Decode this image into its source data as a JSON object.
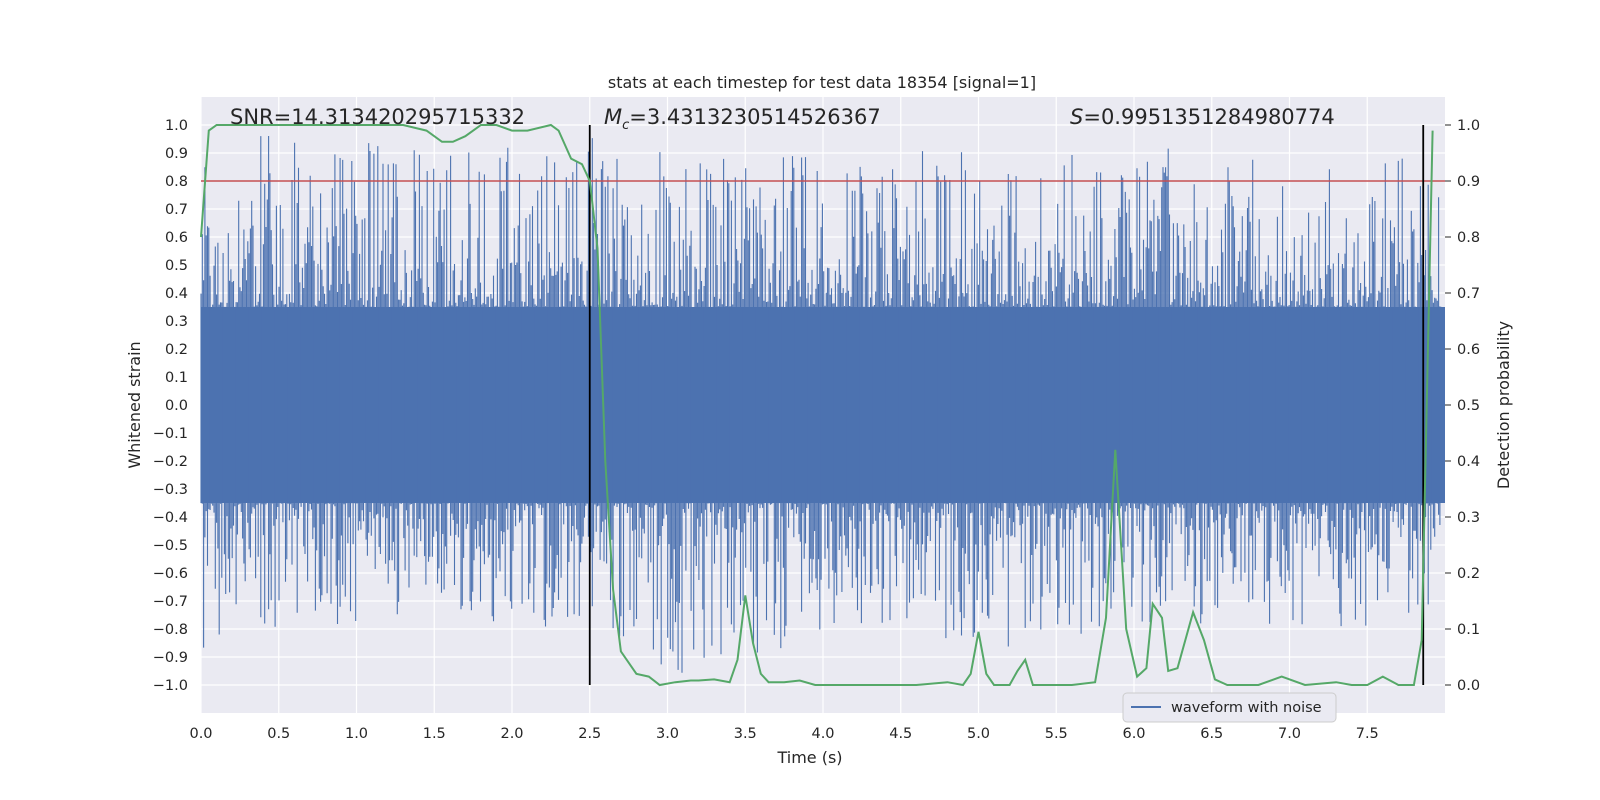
{
  "chart_data": {
    "type": "line",
    "title": "stats at each timestep for test data 18354 [signal=1]",
    "xlabel": "Time (s)",
    "ylabel": "Whitened strain",
    "y2label": "Detection probability",
    "xlim": [
      0.0,
      8.0
    ],
    "ylim": [
      -1.1,
      1.1
    ],
    "y2lim": [
      -0.05,
      1.05
    ],
    "xticks": [
      "0.0",
      "0.5",
      "1.0",
      "1.5",
      "2.0",
      "2.5",
      "3.0",
      "3.5",
      "4.0",
      "4.5",
      "5.0",
      "5.5",
      "6.0",
      "6.5",
      "7.0",
      "7.5"
    ],
    "yticks": [
      "1.0",
      "0.9",
      "0.8",
      "0.7",
      "0.6",
      "0.5",
      "0.4",
      "0.3",
      "0.2",
      "0.1",
      "0.0",
      "−0.1",
      "−0.2",
      "−0.3",
      "−0.4",
      "−0.5",
      "−0.6",
      "−0.7",
      "−0.8",
      "−0.9",
      "−1.0"
    ],
    "y2ticks": [
      "1.0",
      "0.9",
      "0.8",
      "0.7",
      "0.6",
      "0.5",
      "0.4",
      "0.3",
      "0.2",
      "0.1",
      "0.0"
    ],
    "grid": true,
    "legend": {
      "placement": "lower-right",
      "entries": [
        "waveform with noise"
      ]
    },
    "annotations": {
      "snr": "SNR=14.313420295715332",
      "mc_prefix": "M",
      "mc_sub": "c",
      "mc_value": "=3.4313230514526367",
      "s_prefix": "S",
      "s_value": "=0.9951351284980774"
    },
    "threshold_line": {
      "y": 0.8,
      "color": "#c44e52"
    },
    "event_lines_x": [
      2.5,
      7.86
    ],
    "series": [
      {
        "name": "waveform with noise",
        "color": "#4c72b0",
        "axis": "left",
        "note": "dense noisy waveform, core amplitude about ±0.35 with spikes to ±0.98",
        "envelope": {
          "x": [
            0.0,
            0.5,
            1.0,
            1.5,
            2.0,
            2.5,
            3.0,
            3.5,
            4.0,
            4.5,
            5.0,
            5.5,
            6.0,
            6.5,
            7.0,
            7.5,
            8.0
          ],
          "upper": [
            0.95,
            0.98,
            0.95,
            0.9,
            0.92,
            0.97,
            0.9,
            0.88,
            0.9,
            0.92,
            0.9,
            0.88,
            0.95,
            0.92,
            0.9,
            0.95,
            0.8
          ],
          "lower": [
            -0.88,
            -0.8,
            -0.78,
            -0.75,
            -0.83,
            -0.75,
            -0.98,
            -0.9,
            -0.85,
            -0.8,
            -0.92,
            -0.86,
            -0.8,
            -0.82,
            -0.78,
            -0.8,
            -0.7
          ]
        }
      },
      {
        "name": "detection probability",
        "color": "#55a868",
        "axis": "right",
        "x": [
          0.0,
          0.05,
          0.1,
          0.2,
          0.3,
          0.5,
          0.8,
          1.0,
          1.3,
          1.45,
          1.55,
          1.62,
          1.7,
          1.8,
          1.9,
          2.0,
          2.1,
          2.25,
          2.3,
          2.38,
          2.45,
          2.5,
          2.55,
          2.6,
          2.65,
          2.7,
          2.8,
          2.88,
          2.95,
          3.05,
          3.15,
          3.2,
          3.3,
          3.4,
          3.45,
          3.5,
          3.55,
          3.6,
          3.65,
          3.75,
          3.85,
          3.95,
          4.2,
          4.6,
          4.8,
          4.9,
          4.95,
          5.0,
          5.05,
          5.1,
          5.2,
          5.25,
          5.3,
          5.35,
          5.45,
          5.6,
          5.75,
          5.82,
          5.88,
          5.95,
          6.02,
          6.08,
          6.12,
          6.18,
          6.22,
          6.28,
          6.38,
          6.45,
          6.52,
          6.6,
          6.8,
          6.95,
          7.1,
          7.3,
          7.4,
          7.5,
          7.6,
          7.7,
          7.8,
          7.85,
          7.92
        ],
        "y": [
          0.8,
          0.99,
          1.0,
          1.0,
          1.0,
          1.0,
          1.0,
          1.0,
          1.0,
          0.99,
          0.97,
          0.97,
          0.98,
          1.0,
          1.0,
          0.99,
          0.99,
          1.0,
          0.99,
          0.94,
          0.93,
          0.9,
          0.78,
          0.4,
          0.17,
          0.06,
          0.02,
          0.015,
          0.0,
          0.005,
          0.008,
          0.008,
          0.01,
          0.005,
          0.045,
          0.16,
          0.075,
          0.02,
          0.005,
          0.005,
          0.008,
          0.0,
          0.0,
          0.0,
          0.005,
          0.0,
          0.02,
          0.095,
          0.02,
          0.0,
          0.0,
          0.025,
          0.045,
          0.0,
          0.0,
          0.0,
          0.005,
          0.12,
          0.42,
          0.1,
          0.015,
          0.03,
          0.145,
          0.12,
          0.025,
          0.03,
          0.13,
          0.08,
          0.01,
          0.0,
          0.0,
          0.015,
          0.0,
          0.005,
          0.0,
          0.0,
          0.015,
          0.0,
          0.0,
          0.08,
          0.99
        ]
      }
    ]
  }
}
